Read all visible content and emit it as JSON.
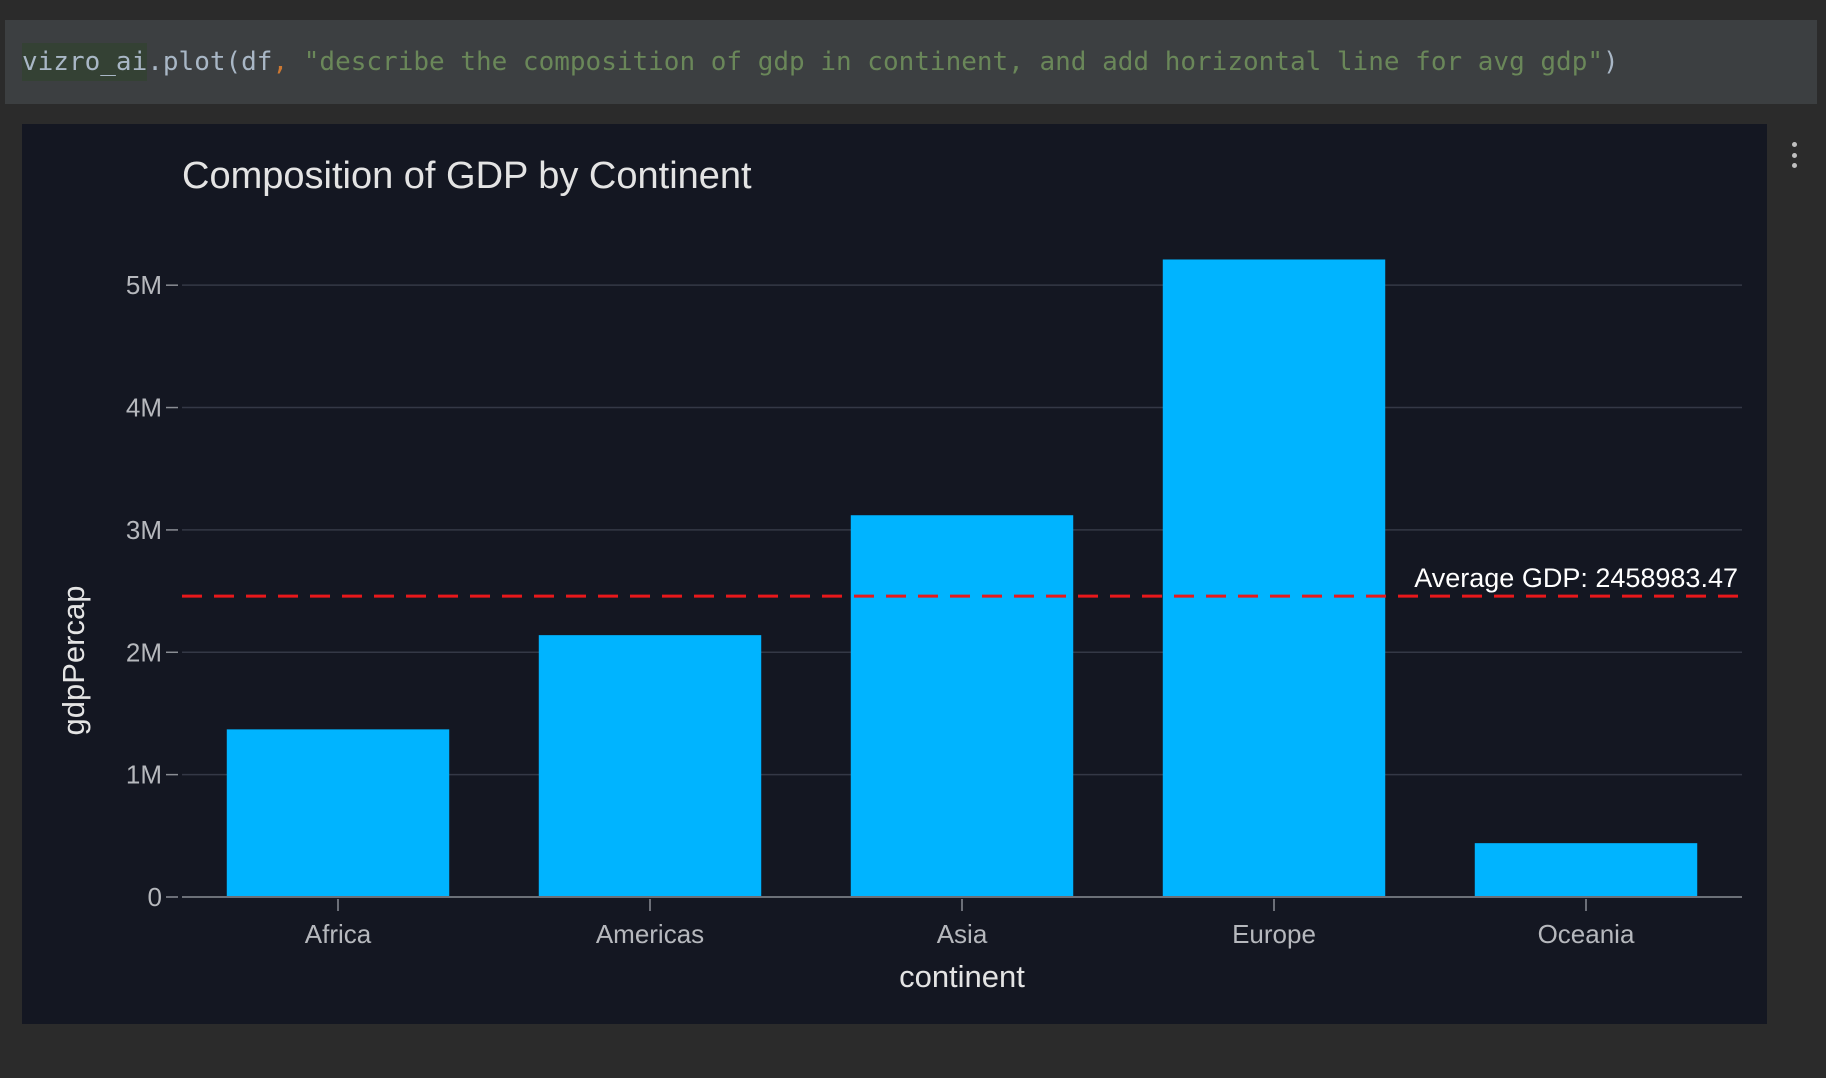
{
  "code_cell": {
    "tokens": {
      "obj": "vizro_ai",
      "method": ".plot(df",
      "comma": ",",
      "space": " ",
      "arg": "\"describe the composition of gdp in continent, and add horizontal line for avg gdp\"",
      "close": ")"
    }
  },
  "output_menu": {
    "icon": "kebab-menu-icon"
  },
  "colors": {
    "page_bg": "#2b2b2b",
    "code_bg": "#3c3f41",
    "plot_bg": "#141722",
    "bar": "#00b4ff",
    "avg_line": "#e8181b",
    "grid": "#343846",
    "axis_text": "#b6b8bd",
    "title_text": "#e4e4e4"
  },
  "chart_data": {
    "type": "bar",
    "title": "Composition of GDP by Continent",
    "xlabel": "continent",
    "ylabel": "gdpPercap",
    "categories": [
      "Africa",
      "Americas",
      "Asia",
      "Europe",
      "Oceania"
    ],
    "values": [
      1370000,
      2140000,
      3120000,
      5210000,
      440000
    ],
    "ylim": [
      0,
      5500000
    ],
    "yticks": [
      {
        "value": 0,
        "label": "0"
      },
      {
        "value": 1000000,
        "label": "1M"
      },
      {
        "value": 2000000,
        "label": "2M"
      },
      {
        "value": 3000000,
        "label": "3M"
      },
      {
        "value": 4000000,
        "label": "4M"
      },
      {
        "value": 5000000,
        "label": "5M"
      }
    ],
    "grid": true,
    "legend": "none",
    "reference_line": {
      "orientation": "horizontal",
      "style": "dashed",
      "value": 2458983.47,
      "label": "Average GDP: 2458983.47"
    }
  }
}
